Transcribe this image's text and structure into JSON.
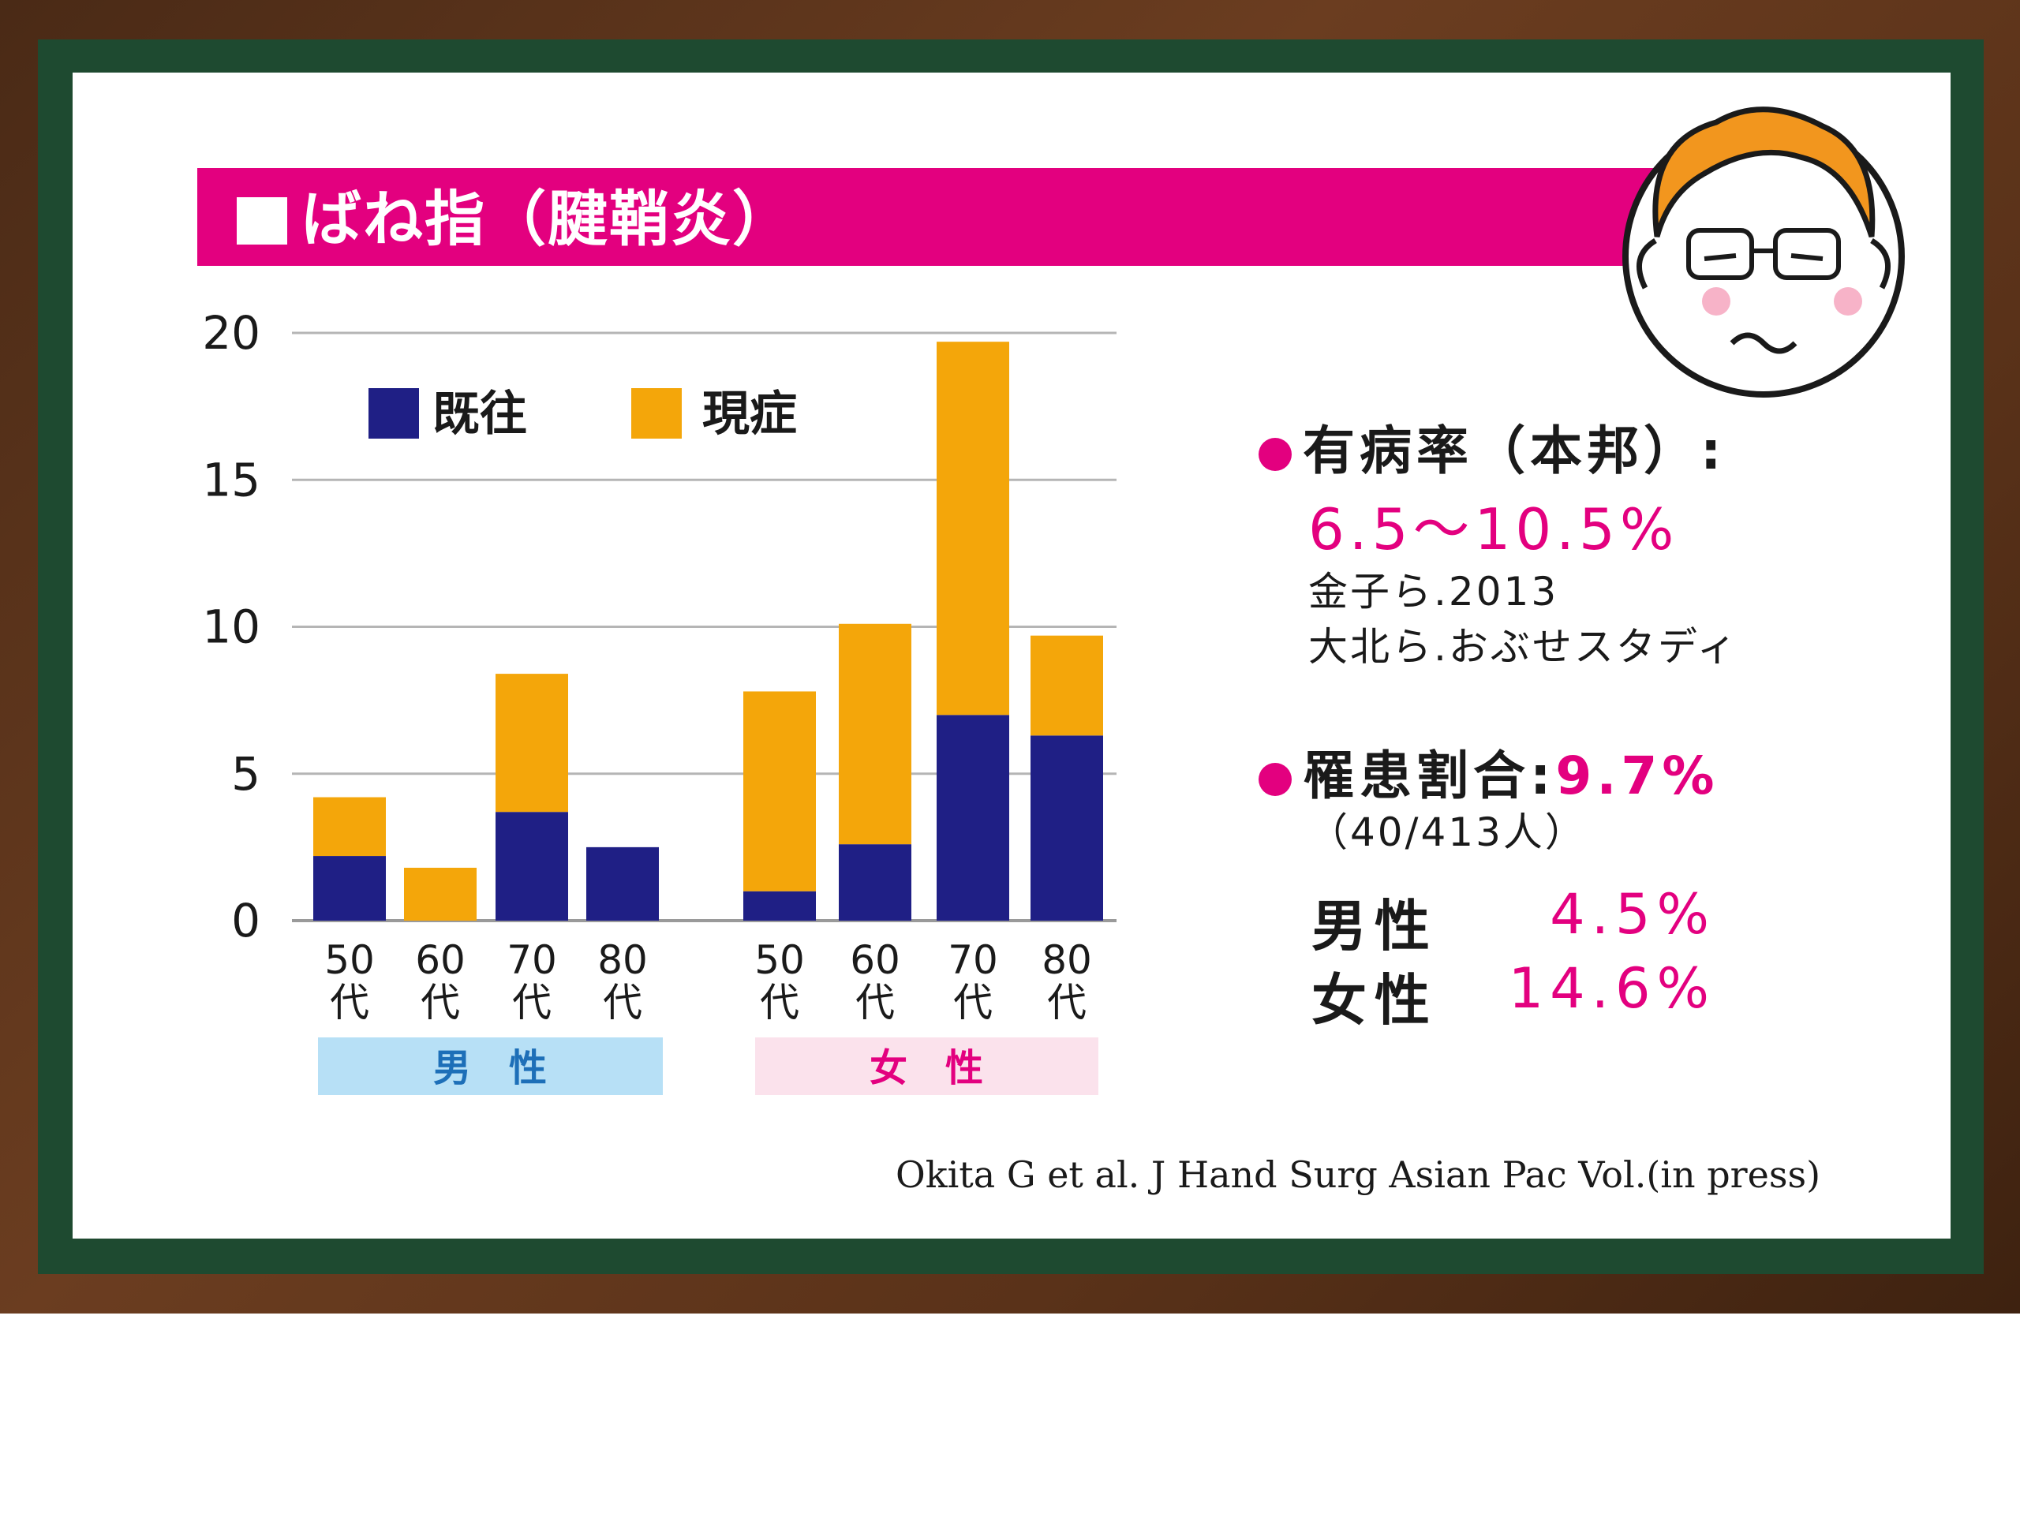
{
  "title": "ばね指（腱鞘炎）",
  "legend": {
    "past": "既往",
    "current": "現症"
  },
  "colors": {
    "past": "#1f1f85",
    "current": "#f4a60a",
    "accent": "#e3007f",
    "male_band": "#b7e0f6",
    "female_band": "#fbe2ec",
    "male_text": "#1d6fb8",
    "female_text": "#e3007f"
  },
  "groups": {
    "male": "男　性",
    "female": "女　性"
  },
  "chart_data": {
    "type": "bar",
    "stacked": true,
    "ylim": [
      0,
      20
    ],
    "yticks": [
      "0",
      "5",
      "10",
      "15",
      "20"
    ],
    "categories": [
      {
        "num": "50",
        "suffix": "代",
        "group": "男性"
      },
      {
        "num": "60",
        "suffix": "代",
        "group": "男性"
      },
      {
        "num": "70",
        "suffix": "代",
        "group": "男性"
      },
      {
        "num": "80",
        "suffix": "代",
        "group": "男性"
      },
      {
        "num": "50",
        "suffix": "代",
        "group": "女性"
      },
      {
        "num": "60",
        "suffix": "代",
        "group": "女性"
      },
      {
        "num": "70",
        "suffix": "代",
        "group": "女性"
      },
      {
        "num": "80",
        "suffix": "代",
        "group": "女性"
      }
    ],
    "series": [
      {
        "name": "既往",
        "values": [
          2.2,
          0,
          3.7,
          2.5,
          1.0,
          2.6,
          7.0,
          6.3
        ]
      },
      {
        "name": "現症",
        "values": [
          2.0,
          1.8,
          4.7,
          0,
          6.8,
          7.5,
          12.7,
          3.4
        ]
      }
    ],
    "grid": true,
    "legend_position": "top-left"
  },
  "info": {
    "prevalence_label": "有病率（本邦）:",
    "prevalence_value": "6.5～10.5%",
    "ref1": "金子ら.2013",
    "ref2": "大北ら.おぶせスタディ",
    "morbidity_label": "罹患割合:",
    "morbidity_value": "9.7%",
    "morbidity_count": "（40/413人）",
    "male_label": "男性",
    "male_value": "4.5%",
    "female_label": "女性",
    "female_value": "14.6%"
  },
  "citation": "Okita G et al. J Hand Surg Asian Pac Vol.(in press)",
  "character": {
    "icon": "doctor-face-icon"
  }
}
